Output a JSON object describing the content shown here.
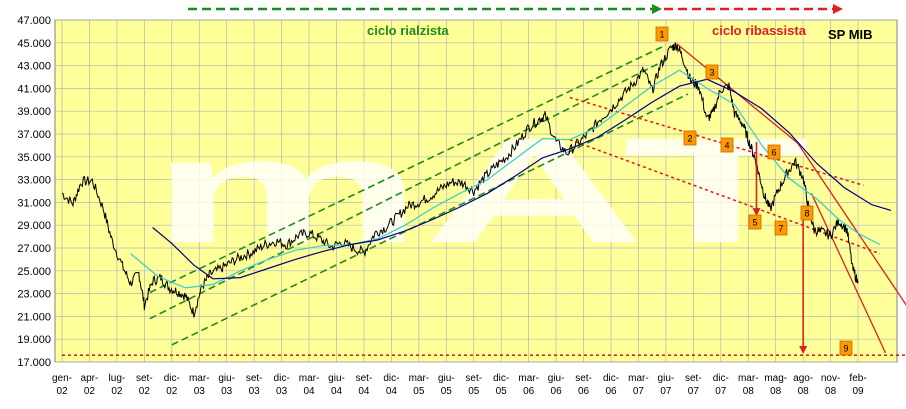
{
  "chart_data": {
    "type": "line",
    "title": "SP MIB",
    "xlabel": "",
    "ylabel": "",
    "ylim": [
      17000,
      47000
    ],
    "yticks": [
      "17.000",
      "19.000",
      "21.000",
      "23.000",
      "25.000",
      "27.000",
      "29.000",
      "31.000",
      "33.000",
      "35.000",
      "37.000",
      "39.000",
      "41.000",
      "43.000",
      "45.000",
      "47.000"
    ],
    "x_ticks": [
      {
        "m": "gen-",
        "y": "02"
      },
      {
        "m": "apr-",
        "y": "02"
      },
      {
        "m": "lug-",
        "y": "02"
      },
      {
        "m": "set-",
        "y": "02"
      },
      {
        "m": "dic-",
        "y": "02"
      },
      {
        "m": "mar-",
        "y": "03"
      },
      {
        "m": "giu-",
        "y": "03"
      },
      {
        "m": "set-",
        "y": "03"
      },
      {
        "m": "dic-",
        "y": "03"
      },
      {
        "m": "mar-",
        "y": "04"
      },
      {
        "m": "giu-",
        "y": "04"
      },
      {
        "m": "set-",
        "y": "04"
      },
      {
        "m": "dic-",
        "y": "04"
      },
      {
        "m": "mar-",
        "y": "05"
      },
      {
        "m": "giu-",
        "y": "05"
      },
      {
        "m": "set-",
        "y": "05"
      },
      {
        "m": "dic-",
        "y": "05"
      },
      {
        "m": "mar-",
        "y": "06"
      },
      {
        "m": "giu-",
        "y": "06"
      },
      {
        "m": "set-",
        "y": "06"
      },
      {
        "m": "dic-",
        "y": "06"
      },
      {
        "m": "mar-",
        "y": "07"
      },
      {
        "m": "giu-",
        "y": "07"
      },
      {
        "m": "set-",
        "y": "07"
      },
      {
        "m": "dic-",
        "y": "07"
      },
      {
        "m": "mar-",
        "y": "08"
      },
      {
        "m": "mag-",
        "y": "08"
      },
      {
        "m": "ago-",
        "y": "08"
      },
      {
        "m": "nov-",
        "y": "08"
      },
      {
        "m": "feb-",
        "y": "09"
      }
    ],
    "grid": true,
    "background": "#FFFF99",
    "watermark": "mAT",
    "annotations": [
      {
        "text": "ciclo rialzista",
        "color": "#1E8B1E"
      },
      {
        "text": "ciclo ribassista",
        "color": "#E02020"
      }
    ],
    "markers": [
      "1",
      "2",
      "3",
      "4",
      "5",
      "6",
      "7",
      "8",
      "9"
    ],
    "series": [
      {
        "color": "#000000",
        "points": [
          [
            0,
            31800
          ],
          [
            0.4,
            30900
          ],
          [
            0.7,
            32800
          ],
          [
            1.1,
            32900
          ],
          [
            1.5,
            30500
          ],
          [
            1.8,
            27800
          ],
          [
            2.2,
            25400
          ],
          [
            2.5,
            23900
          ],
          [
            2.8,
            24800
          ],
          [
            3.0,
            22000
          ],
          [
            3.3,
            24100
          ],
          [
            3.6,
            24400
          ],
          [
            3.9,
            23500
          ],
          [
            4.2,
            23200
          ],
          [
            4.5,
            22800
          ],
          [
            4.8,
            21300
          ],
          [
            5.1,
            23600
          ],
          [
            5.4,
            24700
          ],
          [
            5.8,
            25200
          ],
          [
            6.2,
            25800
          ],
          [
            6.6,
            26300
          ],
          [
            7.0,
            26700
          ],
          [
            7.4,
            27300
          ],
          [
            7.8,
            27600
          ],
          [
            8.2,
            27300
          ],
          [
            8.6,
            28100
          ],
          [
            9.0,
            28300
          ],
          [
            9.4,
            27800
          ],
          [
            9.8,
            27100
          ],
          [
            10.2,
            27500
          ],
          [
            10.6,
            27000
          ],
          [
            11.0,
            26600
          ],
          [
            11.4,
            28300
          ],
          [
            11.8,
            28800
          ],
          [
            12.2,
            29700
          ],
          [
            12.6,
            30700
          ],
          [
            13.0,
            31000
          ],
          [
            13.4,
            31500
          ],
          [
            13.8,
            32200
          ],
          [
            14.2,
            32800
          ],
          [
            14.6,
            32700
          ],
          [
            15.0,
            32000
          ],
          [
            15.4,
            33200
          ],
          [
            15.8,
            34200
          ],
          [
            16.2,
            35000
          ],
          [
            16.6,
            36200
          ],
          [
            17.0,
            37600
          ],
          [
            17.4,
            38300
          ],
          [
            17.6,
            38600
          ],
          [
            18.0,
            36300
          ],
          [
            18.4,
            35300
          ],
          [
            18.8,
            36200
          ],
          [
            19.2,
            37100
          ],
          [
            19.6,
            38300
          ],
          [
            20.0,
            39200
          ],
          [
            20.4,
            40300
          ],
          [
            20.8,
            41400
          ],
          [
            21.2,
            42600
          ],
          [
            21.5,
            40800
          ],
          [
            21.8,
            43000
          ],
          [
            22.2,
            44600
          ],
          [
            22.4,
            44800
          ],
          [
            22.6,
            43800
          ],
          [
            22.9,
            41700
          ],
          [
            23.2,
            41200
          ],
          [
            23.5,
            38300
          ],
          [
            23.7,
            38800
          ],
          [
            24.0,
            40900
          ],
          [
            24.3,
            41200
          ],
          [
            24.5,
            38800
          ],
          [
            24.8,
            37900
          ],
          [
            25.0,
            36500
          ],
          [
            25.2,
            35200
          ],
          [
            25.4,
            33400
          ],
          [
            25.6,
            31500
          ],
          [
            25.8,
            30400
          ],
          [
            26.1,
            32100
          ],
          [
            26.4,
            33500
          ],
          [
            26.7,
            34600
          ],
          [
            27.0,
            33200
          ],
          [
            27.2,
            30500
          ],
          [
            27.4,
            28600
          ],
          [
            27.7,
            28400
          ],
          [
            28.0,
            28100
          ],
          [
            28.3,
            29400
          ],
          [
            28.6,
            28600
          ],
          [
            28.8,
            25200
          ],
          [
            29.0,
            23900
          ]
        ]
      },
      {
        "color": "#33CCCC",
        "points": [
          [
            2.5,
            26500
          ],
          [
            3.5,
            24500
          ],
          [
            4.5,
            23500
          ],
          [
            5.5,
            23800
          ],
          [
            6.5,
            25000
          ],
          [
            7.5,
            26000
          ],
          [
            8.5,
            26800
          ],
          [
            9.5,
            27200
          ],
          [
            10.5,
            27300
          ],
          [
            11.5,
            27800
          ],
          [
            12.5,
            29000
          ],
          [
            13.5,
            30500
          ],
          [
            14.5,
            31800
          ],
          [
            15.5,
            33000
          ],
          [
            16.5,
            34800
          ],
          [
            17.5,
            36600
          ],
          [
            18.5,
            36500
          ],
          [
            19.5,
            37600
          ],
          [
            20.5,
            39400
          ],
          [
            21.5,
            41200
          ],
          [
            22.5,
            42600
          ],
          [
            23.5,
            41000
          ],
          [
            24.5,
            39600
          ],
          [
            25.5,
            36000
          ],
          [
            26.5,
            33100
          ],
          [
            27.5,
            31300
          ],
          [
            28.3,
            29500
          ],
          [
            29.0,
            28300
          ],
          [
            29.8,
            27300
          ]
        ]
      },
      {
        "color": "#000080",
        "points": [
          [
            3.3,
            28800
          ],
          [
            4.0,
            27400
          ],
          [
            4.8,
            25500
          ],
          [
            5.5,
            24300
          ],
          [
            6.5,
            24400
          ],
          [
            7.5,
            25200
          ],
          [
            8.5,
            26000
          ],
          [
            9.5,
            26700
          ],
          [
            10.5,
            27300
          ],
          [
            11.5,
            27700
          ],
          [
            12.5,
            28500
          ],
          [
            13.5,
            29500
          ],
          [
            14.5,
            30600
          ],
          [
            15.5,
            31800
          ],
          [
            16.5,
            33300
          ],
          [
            17.5,
            34900
          ],
          [
            18.5,
            35700
          ],
          [
            19.5,
            36700
          ],
          [
            20.5,
            38200
          ],
          [
            21.5,
            39800
          ],
          [
            22.5,
            41200
          ],
          [
            23.5,
            41800
          ],
          [
            24.5,
            40700
          ],
          [
            25.5,
            39200
          ],
          [
            26.5,
            37100
          ],
          [
            27.5,
            34400
          ],
          [
            28.5,
            32300
          ],
          [
            29.5,
            30800
          ],
          [
            30.2,
            30300
          ]
        ]
      }
    ],
    "trendlines": [
      {
        "color": "#1E8B1E",
        "dash": true,
        "points": [
          [
            3.2,
            23100
          ],
          [
            22.0,
            44800
          ]
        ]
      },
      {
        "color": "#1E8B1E",
        "dash": true,
        "points": [
          [
            3.2,
            20800
          ],
          [
            22.0,
            43500
          ]
        ]
      },
      {
        "color": "#1E8B1E",
        "dash": true,
        "points": [
          [
            4.0,
            18500
          ],
          [
            22.8,
            40500
          ]
        ]
      },
      {
        "color": "#E02020",
        "dash": false,
        "points": [
          [
            22.4,
            44900
          ],
          [
            26.8,
            36200
          ],
          [
            31.2,
            20400
          ]
        ]
      },
      {
        "color": "#E02020",
        "dash": false,
        "points": [
          [
            27.3,
            31800
          ],
          [
            30.0,
            17800
          ]
        ]
      },
      {
        "color": "#E02020",
        "dash": true,
        "points": [
          [
            18.5,
            36500
          ],
          [
            29.8,
            26500
          ]
        ]
      },
      {
        "color": "#E02020",
        "dash": true,
        "points": [
          [
            18.5,
            40200
          ],
          [
            29.2,
            32500
          ]
        ]
      },
      {
        "color": "#E02020",
        "dash": true,
        "points": [
          [
            0,
            17600
          ],
          [
            31.5,
            17600
          ]
        ]
      }
    ],
    "arrows": [
      {
        "color": "#E02020",
        "from": [
          25.3,
          36300
        ],
        "to": [
          25.3,
          29800
        ]
      },
      {
        "color": "#E02020",
        "from": [
          27.0,
          30200
        ],
        "to": [
          27.0,
          17700
        ]
      }
    ]
  }
}
